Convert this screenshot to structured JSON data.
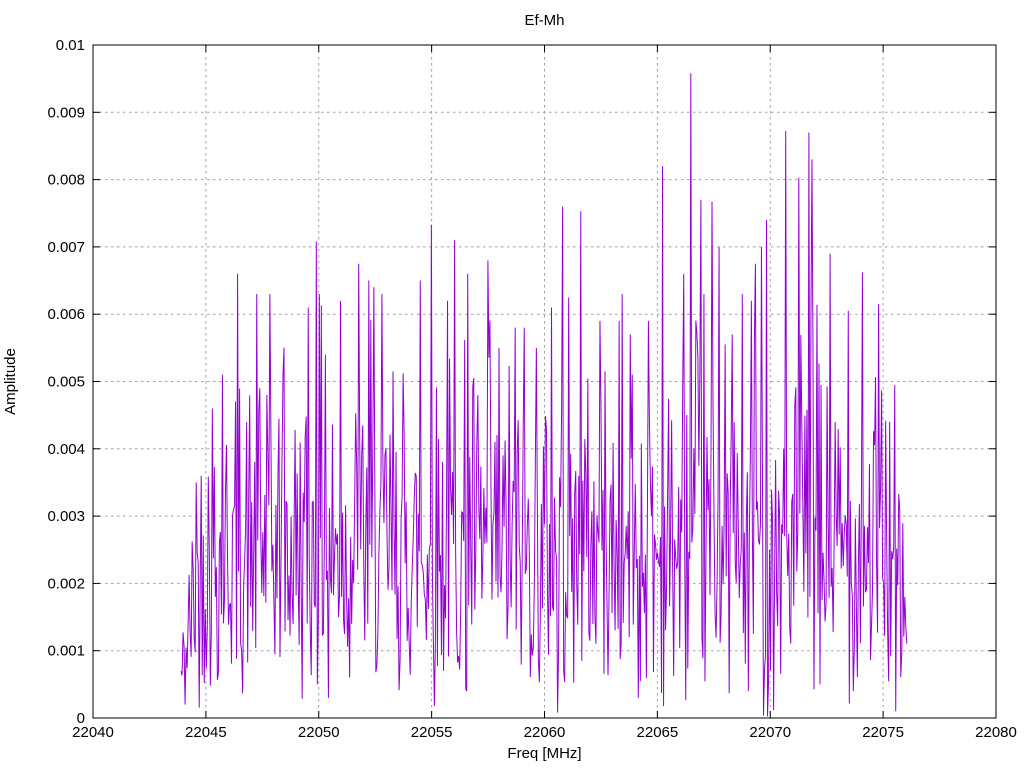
{
  "chart_data": {
    "type": "line",
    "title": "Ef-Mh",
    "xlabel": "Freq [MHz]",
    "ylabel": "Amplitude",
    "xlim": [
      22040,
      22080
    ],
    "ylim": [
      0,
      0.01
    ],
    "grid": true,
    "legend_position": "none",
    "line_color": "#9400D3",
    "grid_color": "#a0a0a0",
    "axis_color": "#000000",
    "background_color": "#ffffff",
    "xticks": {
      "values": [
        22040,
        22045,
        22050,
        22055,
        22060,
        22065,
        22070,
        22075,
        22080
      ],
      "labels": [
        "22040",
        "22045",
        "22050",
        "22055",
        "22060",
        "22065",
        "22070",
        "22075",
        "22080"
      ]
    },
    "yticks": {
      "values": [
        0,
        0.001,
        0.002,
        0.003,
        0.004,
        0.005,
        0.006,
        0.007,
        0.008,
        0.009,
        0.01
      ],
      "labels": [
        "0",
        "0.001",
        "0.002",
        "0.003",
        "0.004",
        "0.005",
        "0.006",
        "0.007",
        "0.008",
        "0.009",
        "0.01"
      ]
    },
    "series_description": "Dense noise-like amplitude spectrum spanning 22044-22076 MHz; noise floor mostly 0.0005-0.005 with sharp spikes; maximum spike 0.00958 at 22066.5 MHz",
    "signal": {
      "x_start": 22043.9,
      "x_end": 22076.05,
      "n_points": 720,
      "sigma": 0.00205,
      "random_clamp": 0.0063,
      "seed": 42,
      "ramp_in_mhz": 1.0,
      "ramp_out_mhz": 0.7,
      "edge_floor": 0.25,
      "end_floor": 0.5,
      "peaks": [
        [
          22044.55,
          0.0035
        ],
        [
          22045.3,
          0.0046
        ],
        [
          22045.75,
          0.0051
        ],
        [
          22046.4,
          0.0066
        ],
        [
          22047.4,
          0.0049
        ],
        [
          22047.7,
          0.0048
        ],
        [
          22048.4,
          0.0051
        ],
        [
          22049.55,
          0.0061
        ],
        [
          22049.9,
          0.00708
        ],
        [
          22050.3,
          0.0054
        ],
        [
          22050.95,
          0.0062
        ],
        [
          22051.75,
          0.00675
        ],
        [
          22052.2,
          0.0065
        ],
        [
          22052.45,
          0.0064
        ],
        [
          22053.3,
          0.00515
        ],
        [
          22054.5,
          0.0065
        ],
        [
          22055.0,
          0.00733
        ],
        [
          22055.7,
          0.0062
        ],
        [
          22056.0,
          0.0071
        ],
        [
          22056.6,
          0.0066
        ],
        [
          22057.5,
          0.0068
        ],
        [
          22058.0,
          0.0055
        ],
        [
          22058.7,
          0.0058
        ],
        [
          22059.1,
          0.0058
        ],
        [
          22059.65,
          0.0055
        ],
        [
          22060.3,
          0.0061
        ],
        [
          22060.8,
          0.0076
        ],
        [
          22061.6,
          0.00753
        ],
        [
          22062.45,
          0.0059
        ],
        [
          22063.3,
          0.0059
        ],
        [
          22063.9,
          0.0051
        ],
        [
          22064.6,
          0.0059
        ],
        [
          22065.25,
          0.0082
        ],
        [
          22066.15,
          0.0066
        ],
        [
          22066.5,
          0.00958
        ],
        [
          22066.95,
          0.0077
        ],
        [
          22067.4,
          0.00767
        ],
        [
          22067.75,
          0.007
        ],
        [
          22068.3,
          0.0057
        ],
        [
          22069.17,
          0.0062
        ],
        [
          22069.35,
          0.00675
        ],
        [
          22069.6,
          0.007
        ],
        [
          22069.85,
          0.0074
        ],
        [
          22070.7,
          0.00872
        ],
        [
          22071.25,
          0.00803
        ],
        [
          22071.7,
          0.0087
        ],
        [
          22071.85,
          0.0083
        ],
        [
          22072.65,
          0.0069
        ],
        [
          22073.45,
          0.00605
        ],
        [
          22074.1,
          0.00662
        ],
        [
          22074.8,
          0.00615
        ],
        [
          22075.3,
          0.0044
        ]
      ],
      "dips": [
        [
          22044.1,
          0.0002
        ],
        [
          22050.45,
          0.0003
        ],
        [
          22056.55,
          0.0004
        ],
        [
          22060.6,
          8e-05
        ],
        [
          22064.15,
          0.0003
        ],
        [
          22069.05,
          0.0004
        ],
        [
          22072.2,
          0.0005
        ],
        [
          22075.55,
          0.0001
        ]
      ]
    }
  }
}
